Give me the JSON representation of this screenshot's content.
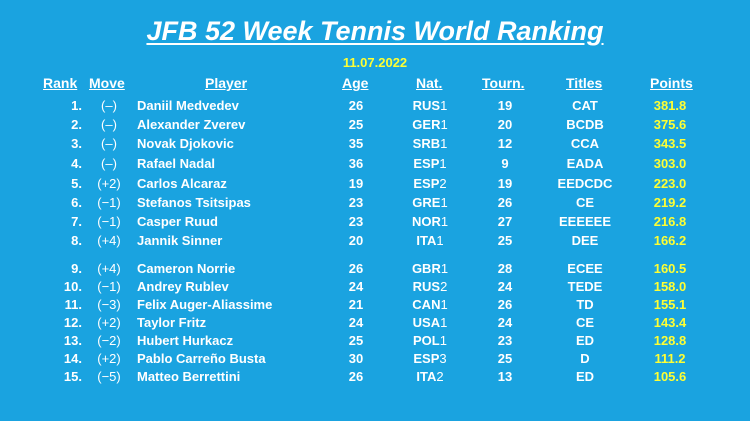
{
  "header": {
    "title": "JFB 52 Week Tennis World Ranking",
    "date": "11.07.2022"
  },
  "columns": {
    "rank": "Rank",
    "move": "Move",
    "player": "Player",
    "age": "Age",
    "nat": "Nat.",
    "tourn": "Tourn.",
    "titles": "Titles",
    "points": "Points"
  },
  "rows": [
    {
      "rank": "1.",
      "move": "(–)",
      "player": "Daniil Medvedev",
      "age": "26",
      "nat": "RUS",
      "nat_num": "1",
      "tourn": "19",
      "titles": "CAT",
      "points": "381.8"
    },
    {
      "rank": "2.",
      "move": "(–)",
      "player": "Alexander Zverev",
      "age": "25",
      "nat": "GER",
      "nat_num": "1",
      "tourn": "20",
      "titles": "BCDB",
      "points": "375.6"
    },
    {
      "rank": "3.",
      "move": "(–)",
      "player": "Novak Djokovic",
      "age": "35",
      "nat": "SRB",
      "nat_num": "1",
      "tourn": "12",
      "titles": "CCA",
      "points": "343.5"
    },
    {
      "rank": "4.",
      "move": "(–)",
      "player": "Rafael Nadal",
      "age": "36",
      "nat": "ESP",
      "nat_num": "1",
      "tourn": "9",
      "titles": "EADA",
      "points": "303.0"
    },
    {
      "rank": "5.",
      "move": "(+2)",
      "player": "Carlos Alcaraz",
      "age": "19",
      "nat": "ESP",
      "nat_num": "2",
      "tourn": "19",
      "titles": "EEDCDC",
      "points": "223.0"
    },
    {
      "rank": "6.",
      "move": "(−1)",
      "player": "Stefanos Tsitsipas",
      "age": "23",
      "nat": "GRE",
      "nat_num": "1",
      "tourn": "26",
      "titles": "CE",
      "points": "219.2"
    },
    {
      "rank": "7.",
      "move": "(−1)",
      "player": "Casper Ruud",
      "age": "23",
      "nat": "NOR",
      "nat_num": "1",
      "tourn": "27",
      "titles": "EEEEEE",
      "points": "216.8"
    },
    {
      "rank": "8.",
      "move": "(+4)",
      "player": "Jannik Sinner",
      "age": "20",
      "nat": "ITA",
      "nat_num": "1",
      "tourn": "25",
      "titles": "DEE",
      "points": "166.2"
    },
    {
      "rank": "9.",
      "move": "(+4)",
      "player": "Cameron Norrie",
      "age": "26",
      "nat": "GBR",
      "nat_num": "1",
      "tourn": "28",
      "titles": "ECEE",
      "points": "160.5"
    },
    {
      "rank": "10.",
      "move": "(−1)",
      "player": "Andrey Rublev",
      "age": "24",
      "nat": "RUS",
      "nat_num": "2",
      "tourn": "24",
      "titles": "TEDE",
      "points": "158.0"
    },
    {
      "rank": "11.",
      "move": "(−3)",
      "player": "Felix Auger-Aliassime",
      "age": "21",
      "nat": "CAN",
      "nat_num": "1",
      "tourn": "26",
      "titles": "TD",
      "points": "155.1"
    },
    {
      "rank": "12.",
      "move": "(+2)",
      "player": "Taylor Fritz",
      "age": "24",
      "nat": "USA",
      "nat_num": "1",
      "tourn": "24",
      "titles": "CE",
      "points": "143.4"
    },
    {
      "rank": "13.",
      "move": "(−2)",
      "player": "Hubert Hurkacz",
      "age": "25",
      "nat": "POL",
      "nat_num": "1",
      "tourn": "23",
      "titles": "ED",
      "points": "128.8"
    },
    {
      "rank": "14.",
      "move": "(+2)",
      "player": "Pablo Carreño Busta",
      "age": "30",
      "nat": "ESP",
      "nat_num": "3",
      "tourn": "25",
      "titles": "D",
      "points": "111.2"
    },
    {
      "rank": "15.",
      "move": "(−5)",
      "player": "Matteo Berrettini",
      "age": "26",
      "nat": "ITA",
      "nat_num": "2",
      "tourn": "13",
      "titles": "ED",
      "points": "105.6"
    }
  ],
  "colors": {
    "background": "#1aa3e0",
    "text": "#ffffff",
    "points": "#ffff33"
  }
}
